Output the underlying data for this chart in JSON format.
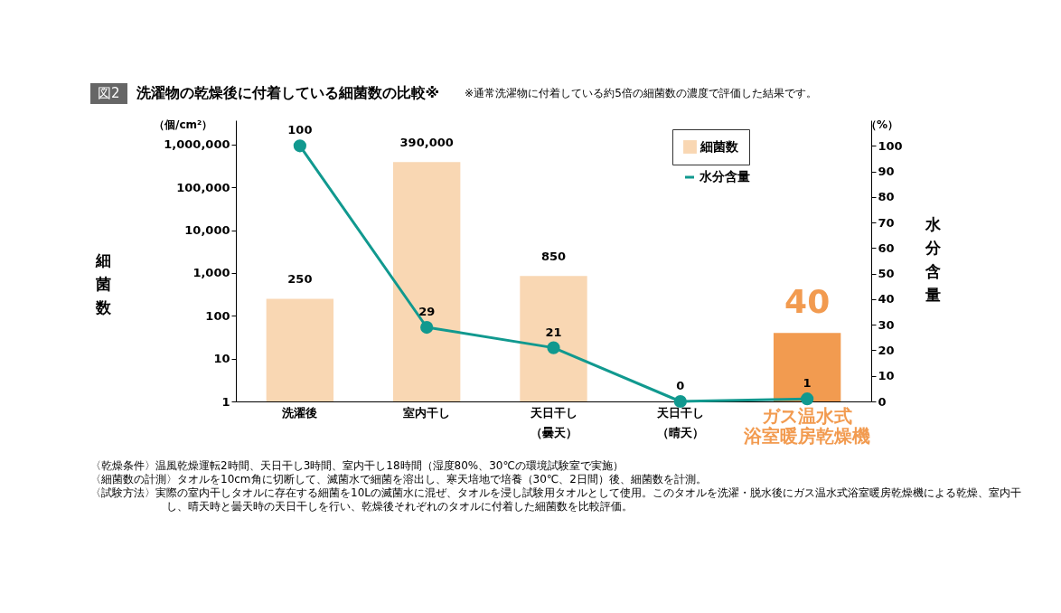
{
  "chart_data": {
    "type": "bar",
    "title": "図2 洗濯物の乾燥後に付着している細菌数の比較※",
    "categories": [
      "洗濯後",
      "室内干し",
      "天日干し（曇天）",
      "天日干し（晴天）",
      "ガス温水式浴室暖房乾燥機"
    ],
    "series": [
      {
        "name": "細菌数",
        "colors": [
          "#f9d7b3",
          "#f9d7b3",
          "#f9d7b3",
          null,
          "#f29b50"
        ],
        "values": [
          250,
          390000,
          850,
          null,
          40
        ],
        "value_labels": [
          "250",
          "390,000",
          "850",
          null,
          "40"
        ]
      },
      {
        "name": "水分含量",
        "type": "line",
        "axis": "y2",
        "color": "#11998f",
        "values": [
          100,
          29,
          21,
          0,
          1
        ],
        "value_labels": [
          "100",
          "29",
          "21",
          "0",
          "1"
        ]
      }
    ],
    "log": "y",
    "ylim": [
      1,
      3700000
    ],
    "yticks": [
      1,
      10,
      100,
      {
        "value": 1000,
        "label": "1,000"
      },
      {
        "value": 10000,
        "label": "10,000"
      },
      {
        "value": 100000,
        "label": "100,000"
      },
      {
        "value": 1000000,
        "label": "1,000,000"
      }
    ],
    "y2lim": [
      0,
      110
    ],
    "y2ticks": [
      0,
      10,
      20,
      30,
      40,
      50,
      60,
      70,
      80,
      90,
      100
    ],
    "ylabel": "細菌数",
    "y2label": "水分含量",
    "marker": "circle",
    "legend": "top right",
    "grid": false,
    "annotations": [
      "※通常洗濯物に付着している約5倍の細菌数の濃度で評価した結果です。",
      "（個/cm²）",
      "（%）",
      "〈乾燥条件〉温風乾燥運転2時間、天日干し3時間、室内干し18時間（湿度80%、30℃の環境試験室で実施）",
      "〈細菌数の計測〉タオルを10cm角に切断して、滅菌水で細菌を溶出し、寒天培地で培養（30℃、2日間）後、細菌数を計測。",
      "〈試験方法〉実際の室内干しタオルに存在する細菌を10Lの滅菌水に混ぜ、タオルを浸し試験用タオルとして使用。このタオルを洗濯・脱水後にガス温水式浴室暖房乾燥機による乾燥、室内干し、晴天時と曇天時の天日干しを行い、乾燥後それぞれのタオルに付着した細菌数を比較評価。"
    ]
  }
}
